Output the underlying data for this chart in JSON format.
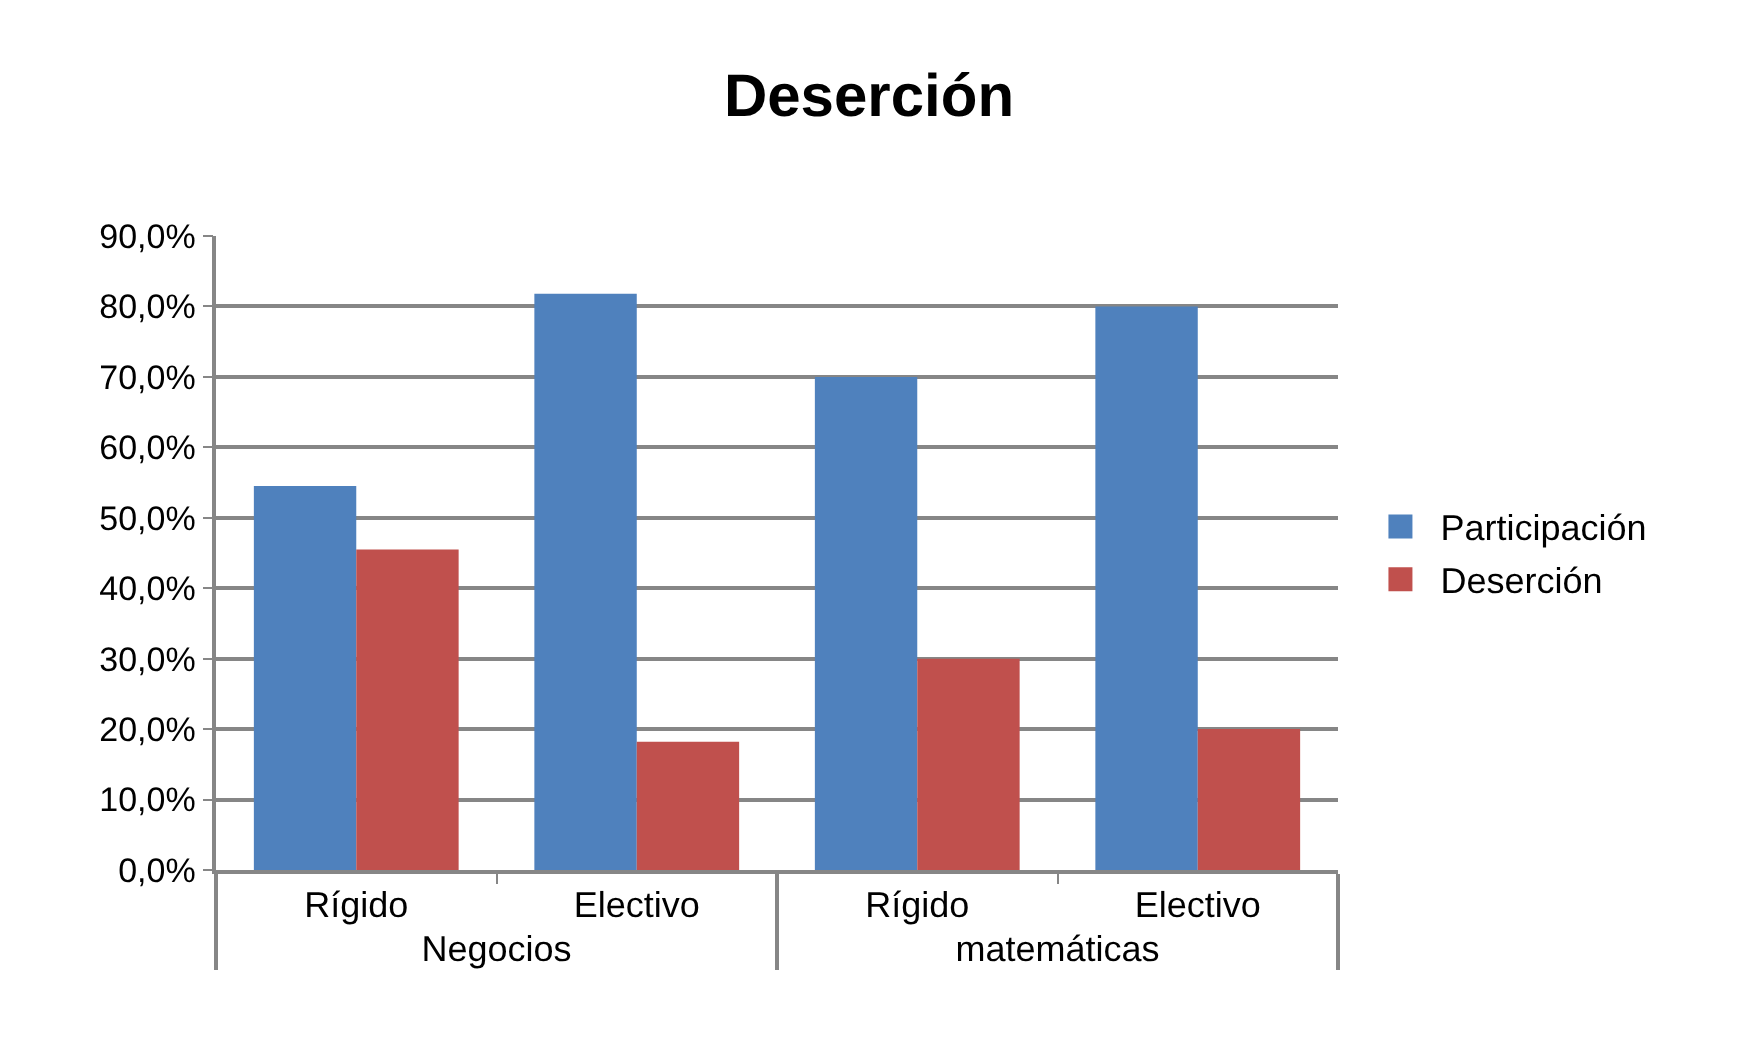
{
  "chart_data": {
    "type": "bar",
    "title": "Deserción",
    "categories": [
      "Rígido",
      "Electivo",
      "Rígido",
      "Electivo"
    ],
    "series": [
      {
        "name": "Participación",
        "color": "#4f81bd",
        "values": [
          54.5,
          81.8,
          70.0,
          80.0
        ]
      },
      {
        "name": "Deserción",
        "color": "#c0504d",
        "values": [
          45.5,
          18.2,
          30.0,
          20.0
        ]
      }
    ],
    "annotations": [
      "Negocios",
      "matemáticas"
    ],
    "ylim": [
      0,
      90
    ],
    "yticks": [
      {
        "value": 0,
        "label": "0,0%"
      },
      {
        "value": 10,
        "label": "10,0%"
      },
      {
        "value": 20,
        "label": "20,0%"
      },
      {
        "value": 30,
        "label": "30,0%"
      },
      {
        "value": 40,
        "label": "40,0%"
      },
      {
        "value": 50,
        "label": "50,0%"
      },
      {
        "value": 60,
        "label": "60,0%"
      },
      {
        "value": 70,
        "label": "70,0%"
      },
      {
        "value": 80,
        "label": "80,0%"
      },
      {
        "value": 90,
        "label": "90,0%"
      }
    ],
    "grid": "y",
    "legend": "right"
  }
}
